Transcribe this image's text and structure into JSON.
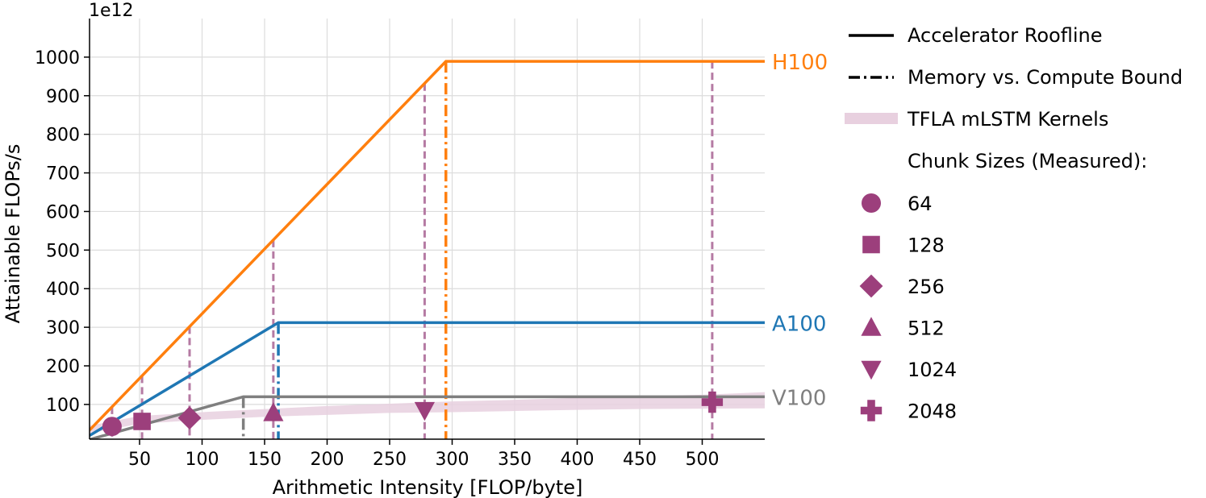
{
  "chart_data": {
    "type": "line",
    "title": "",
    "xlabel": "Arithmetic Intensity [FLOP/byte]",
    "ylabel": "Attainable FLOPs/s",
    "y_scale_label": "1e12",
    "xlim": [
      10,
      550
    ],
    "ylim": [
      10,
      1100
    ],
    "xticks": [
      50,
      100,
      150,
      200,
      250,
      300,
      350,
      400,
      450,
      500
    ],
    "xtick_labels": [
      "50",
      "100",
      "150",
      "200",
      "250",
      "300",
      "350",
      "400",
      "450",
      "500"
    ],
    "yticks": [
      100,
      200,
      300,
      400,
      500,
      600,
      700,
      800,
      900,
      1000
    ],
    "ytick_labels": [
      "100",
      "200",
      "300",
      "400",
      "500",
      "600",
      "700",
      "800",
      "900",
      "1000"
    ],
    "grid": true,
    "legend_position": "right",
    "rooflines": [
      {
        "name": "H100",
        "color": "#ff7f0e",
        "bandwidth": 3.35,
        "peak": 989,
        "ridge": 295
      },
      {
        "name": "A100",
        "color": "#1f77b4",
        "bandwidth": 1.935,
        "peak": 312,
        "ridge": 161
      },
      {
        "name": "V100",
        "color": "#7f7f7f",
        "bandwidth": 0.9,
        "peak": 120,
        "ridge": 133
      }
    ],
    "mlstm_band": {
      "color": "#e8d0df",
      "x": [
        10,
        50,
        100,
        150,
        200,
        250,
        300,
        350,
        400,
        450,
        500,
        550
      ],
      "lower": [
        25,
        50,
        60,
        68,
        73,
        78,
        80,
        83,
        86,
        88,
        89,
        90
      ],
      "upper": [
        45,
        70,
        80,
        88,
        96,
        102,
        108,
        112,
        117,
        121,
        125,
        132
      ]
    },
    "measured": {
      "color": "#9c3f7c",
      "series": [
        {
          "name": "64",
          "marker": "circle",
          "x": 28,
          "y": 43
        },
        {
          "name": "128",
          "marker": "square",
          "x": 52,
          "y": 56
        },
        {
          "name": "256",
          "marker": "diamond",
          "x": 90,
          "y": 65
        },
        {
          "name": "512",
          "marker": "triangle-up",
          "x": 157,
          "y": 78
        },
        {
          "name": "1024",
          "marker": "triangle-down",
          "x": 278,
          "y": 85
        },
        {
          "name": "2048",
          "marker": "plus",
          "x": 508,
          "y": 106
        }
      ]
    },
    "legend": {
      "roofline_label": "Accelerator Roofline",
      "bound_label": "Memory vs. Compute Bound",
      "kernel_label": "TFLA mLSTM Kernels",
      "chunk_header": "Chunk Sizes (Measured):"
    }
  }
}
